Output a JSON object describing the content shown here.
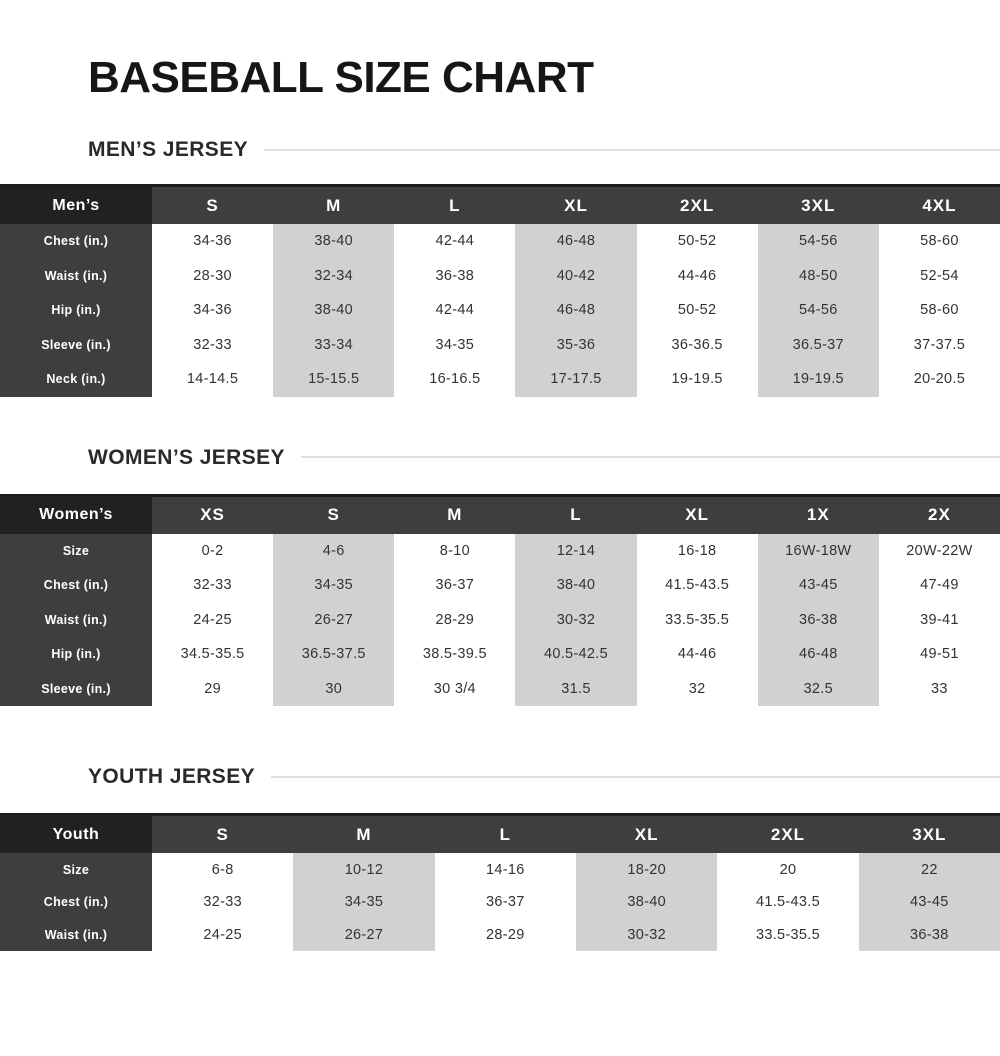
{
  "page": {
    "title": "BASEBALL SIZE CHART"
  },
  "colors": {
    "header_row": "#3e3e3e",
    "corner_cell": "#212121",
    "label_column": "#3e3e3e",
    "shaded_column": "#d1d1d1",
    "data_text": "#333333",
    "header_text": "#ffffff",
    "section_rule": "#e0e0e0"
  },
  "sections": [
    {
      "heading": "MEN’S JERSEY",
      "table": {
        "corner_label": "Men’s",
        "columns": [
          "S",
          "M",
          "L",
          "XL",
          "2XL",
          "3XL",
          "4XL"
        ],
        "shaded_columns": [
          1,
          3,
          5
        ],
        "rows": [
          {
            "label": "Chest (in.)",
            "values": [
              "34-36",
              "38-40",
              "42-44",
              "46-48",
              "50-52",
              "54-56",
              "58-60"
            ]
          },
          {
            "label": "Waist (in.)",
            "values": [
              "28-30",
              "32-34",
              "36-38",
              "40-42",
              "44-46",
              "48-50",
              "52-54"
            ]
          },
          {
            "label": "Hip (in.)",
            "values": [
              "34-36",
              "38-40",
              "42-44",
              "46-48",
              "50-52",
              "54-56",
              "58-60"
            ]
          },
          {
            "label": "Sleeve (in.)",
            "values": [
              "32-33",
              "33-34",
              "34-35",
              "35-36",
              "36-36.5",
              "36.5-37",
              "37-37.5"
            ]
          },
          {
            "label": "Neck (in.)",
            "values": [
              "14-14.5",
              "15-15.5",
              "16-16.5",
              "17-17.5",
              "19-19.5",
              "19-19.5",
              "20-20.5"
            ]
          }
        ]
      }
    },
    {
      "heading": "WOMEN’S JERSEY",
      "table": {
        "corner_label": "Women’s",
        "columns": [
          "XS",
          "S",
          "M",
          "L",
          "XL",
          "1X",
          "2X"
        ],
        "shaded_columns": [
          1,
          3,
          5
        ],
        "rows": [
          {
            "label": "Size",
            "values": [
              "0-2",
              "4-6",
              "8-10",
              "12-14",
              "16-18",
              "16W-18W",
              "20W-22W"
            ]
          },
          {
            "label": "Chest (in.)",
            "values": [
              "32-33",
              "34-35",
              "36-37",
              "38-40",
              "41.5-43.5",
              "43-45",
              "47-49"
            ]
          },
          {
            "label": "Waist (in.)",
            "values": [
              "24-25",
              "26-27",
              "28-29",
              "30-32",
              "33.5-35.5",
              "36-38",
              "39-41"
            ]
          },
          {
            "label": "Hip (in.)",
            "values": [
              "34.5-35.5",
              "36.5-37.5",
              "38.5-39.5",
              "40.5-42.5",
              "44-46",
              "46-48",
              "49-51"
            ]
          },
          {
            "label": "Sleeve (in.)",
            "values": [
              "29",
              "30",
              "30 3/4",
              "31.5",
              "32",
              "32.5",
              "33"
            ]
          }
        ]
      }
    },
    {
      "heading": "YOUTH JERSEY",
      "table": {
        "corner_label": "Youth",
        "columns": [
          "S",
          "M",
          "L",
          "XL",
          "2XL",
          "3XL"
        ],
        "shaded_columns": [
          1,
          3,
          5
        ],
        "rows": [
          {
            "label": "Size",
            "values": [
              "6-8",
              "10-12",
              "14-16",
              "18-20",
              "20",
              "22"
            ]
          },
          {
            "label": "Chest (in.)",
            "values": [
              "32-33",
              "34-35",
              "36-37",
              "38-40",
              "41.5-43.5",
              "43-45"
            ]
          },
          {
            "label": "Waist (in.)",
            "values": [
              "24-25",
              "26-27",
              "28-29",
              "30-32",
              "33.5-35.5",
              "36-38"
            ]
          }
        ]
      }
    }
  ]
}
